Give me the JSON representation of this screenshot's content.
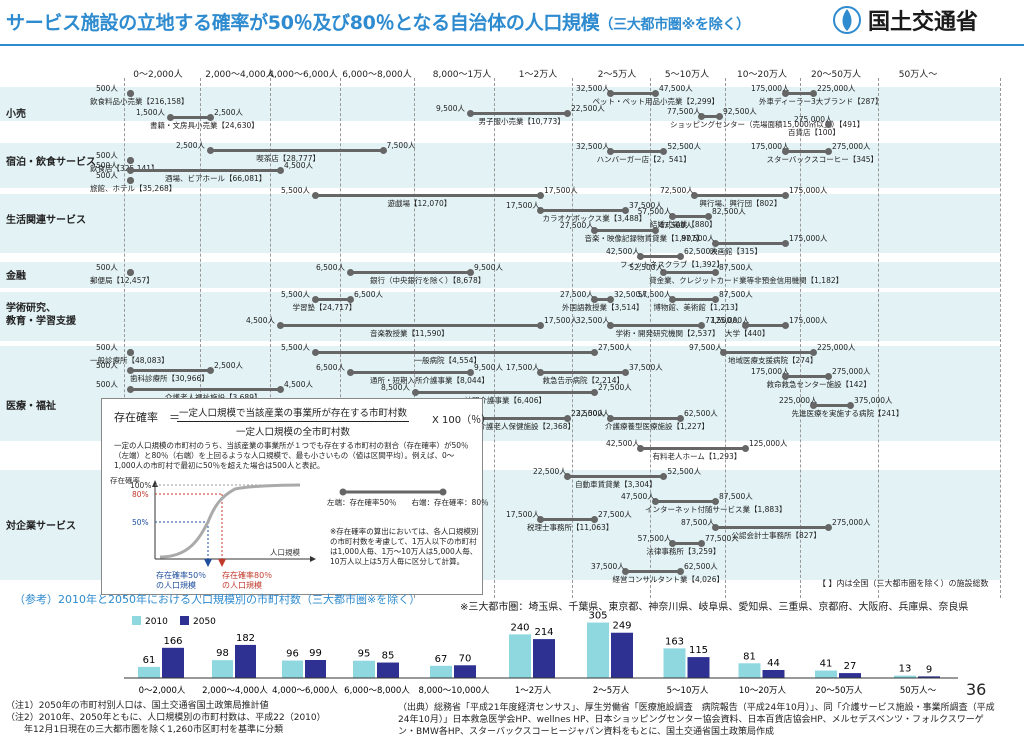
{
  "header": {
    "title": "サービス施設の立地する確率が50％及び80％となる自治体の人口規模",
    "title_sub": "（三大都市圏※を除く）",
    "ministry": "国土交通省",
    "page_number": "36"
  },
  "axis_ticks": [
    "0～2,000人",
    "2,000～4,000人",
    "4,000～6,000人",
    "6,000～8,000人",
    "8,000～1万人",
    "1～2万人",
    "2～5万人",
    "5～10万人",
    "10～20万人",
    "20～50万人",
    "50万人～"
  ],
  "categories": [
    {
      "name": "小売"
    },
    {
      "name": "宿泊・飲食サービス"
    },
    {
      "name": "生活関連サービス"
    },
    {
      "name": "金融"
    },
    {
      "name": "学術研究、\n教育・学習支援"
    },
    {
      "name": "医療・福祉"
    },
    {
      "name": "対企業サービス"
    }
  ],
  "chart_data": [
    {
      "type": "range-dot",
      "title": "サービス施設の立地する確率が50％及び80％となる自治体の人口規模",
      "note": "【 】内は全国（三大都市圏を除く）の施設総数",
      "items": [
        {
          "category": "小売",
          "name": "飲食料品小売業【216,158】",
          "p50": "500人",
          "p80": "500人"
        },
        {
          "category": "小売",
          "name": "書籍・文房具小売業【24,630】",
          "p50": "1,500人",
          "p80": "2,500人"
        },
        {
          "category": "小売",
          "name": "男子服小売業【10,773】",
          "p50": "9,500人",
          "p80": "22,500人"
        },
        {
          "category": "小売",
          "name": "ペット・ペット用品小売業【2,299】",
          "p50": "32,500人",
          "p80": "47,500人"
        },
        {
          "category": "小売",
          "name": "ショッピングセンター（売場面積15,000㎡以上）【491】",
          "p50": "77,500人",
          "p80": "92,500人"
        },
        {
          "category": "小売",
          "name": "外車ディーラー3大ブランド【287】",
          "p50": "175,000人",
          "p80": "225,000人"
        },
        {
          "category": "小売",
          "name": "百貨店【100】",
          "p50": "275,000人",
          "p80": "-"
        },
        {
          "category": "宿泊・飲食サービス",
          "name": "飲食店【325,141】",
          "p50": "500人",
          "p80": "500人"
        },
        {
          "category": "宿泊・飲食サービス",
          "name": "喫茶店【28,777】",
          "p50": "2,500人",
          "p80": "7,500人"
        },
        {
          "category": "宿泊・飲食サービス",
          "name": "酒場、ビアホール【66,081】",
          "p50": "500人",
          "p80": "4,500人"
        },
        {
          "category": "宿泊・飲食サービス",
          "name": "旅館、ホテル【35,268】",
          "p50": "500人",
          "p80": "500人"
        },
        {
          "category": "宿泊・飲食サービス",
          "name": "ハンバーガー店【2，541】",
          "p50": "32,500人",
          "p80": "52,500人"
        },
        {
          "category": "宿泊・飲食サービス",
          "name": "スターバックスコーヒー【345】",
          "p50": "175,000人",
          "p80": "275,000人"
        },
        {
          "category": "生活関連サービス",
          "name": "遊戯場【12,070】",
          "p50": "5,500人",
          "p80": "17,500人"
        },
        {
          "category": "生活関連サービス",
          "name": "カラオケボックス業【3,488】",
          "p50": "17,500人",
          "p80": "37,500人"
        },
        {
          "category": "生活関連サービス",
          "name": "興行場、興行団【802】",
          "p50": "72,500人",
          "p80": "175,000人"
        },
        {
          "category": "生活関連サービス",
          "name": "結婚式場業【880】",
          "p50": "57,500人",
          "p80": "82,500人"
        },
        {
          "category": "生活関連サービス",
          "name": "音楽・映像記録物賃貸業【1,907】",
          "p50": "27,500人",
          "p80": "47,500人"
        },
        {
          "category": "生活関連サービス",
          "name": "映画館【315】",
          "p50": "87,500人",
          "p80": "175,000人"
        },
        {
          "category": "生活関連サービス",
          "name": "フィットネスクラブ【1,392】",
          "p50": "42,500人",
          "p80": "62,500人"
        },
        {
          "category": "金融",
          "name": "郵便局【12,457】",
          "p50": "500人",
          "p80": "500人"
        },
        {
          "category": "金融",
          "name": "銀行（中央銀行を除く）【8,678】",
          "p50": "6,500人",
          "p80": "9,500人"
        },
        {
          "category": "金融",
          "name": "貸金業、クレジットカード業等非預金信用機関【1,182】",
          "p50": "52,500人",
          "p80": "87,500人"
        },
        {
          "category": "学術研究、教育・学習支援",
          "name": "学習塾【24,717】",
          "p50": "5,500人",
          "p80": "6,500人"
        },
        {
          "category": "学術研究、教育・学習支援",
          "name": "外国語教授業【3,514】",
          "p50": "27,500人",
          "p80": "32,500人"
        },
        {
          "category": "学術研究、教育・学習支援",
          "name": "博物館、美術館【1,213】",
          "p50": "57,500人",
          "p80": "87,500人"
        },
        {
          "category": "学術研究、教育・学習支援",
          "name": "音楽教授業【11,590】",
          "p50": "4,500人",
          "p80": "17,500人"
        },
        {
          "category": "学術研究、教育・学習支援",
          "name": "学術・開発研究機関【2,537】",
          "p50": "32,500人",
          "p80": "77,500人"
        },
        {
          "category": "学術研究、教育・学習支援",
          "name": "大学【440】",
          "p50": "125,000人",
          "p80": "175,000人"
        },
        {
          "category": "医療・福祉",
          "name": "一般診療所【48,083】",
          "p50": "500人",
          "p80": "500人"
        },
        {
          "category": "医療・福祉",
          "name": "歯科診療所【30,966】",
          "p50": "500人",
          "p80": "2,500人"
        },
        {
          "category": "医療・福祉",
          "name": "介護老人福祉施設【3,689】",
          "p50": "500人",
          "p80": "4,500人"
        },
        {
          "category": "医療・福祉",
          "name": "一般病院【4,554】",
          "p50": "5,500人",
          "p80": "27,500人"
        },
        {
          "category": "医療・福祉",
          "name": "地域医療支援病院【274】",
          "p50": "97,500人",
          "p80": "225,000人"
        },
        {
          "category": "医療・福祉",
          "name": "通所・短期入所介護事業【8,044】",
          "p50": "6,500人",
          "p80": "9,500人"
        },
        {
          "category": "医療・福祉",
          "name": "救急告示病院【2,214】",
          "p50": "17,500人",
          "p80": "37,500人"
        },
        {
          "category": "医療・福祉",
          "name": "救命救急センター施設【142】",
          "p50": "175,000人",
          "p80": "275,000人"
        },
        {
          "category": "医療・福祉",
          "name": "訪問介護事業【6,406】",
          "p50": "8,500人",
          "p80": "27,500人"
        },
        {
          "category": "医療・福祉",
          "name": "介護老人保健施設【2,368】",
          "p50": "9,500人",
          "p80": "22,500人"
        },
        {
          "category": "医療・福祉",
          "name": "介護療養型医療施設【1,227】",
          "p50": "32,500人",
          "p80": "62,500人"
        },
        {
          "category": "医療・福祉",
          "name": "先進医療を実施する病院【241】",
          "p50": "225,000人",
          "p80": "375,000人"
        },
        {
          "category": "医療・福祉",
          "name": "有料老人ホーム【1,293】",
          "p50": "42,500人",
          "p80": "125,000人"
        },
        {
          "category": "対企業サービス",
          "name": "自動車賃貸業【3,304】",
          "p50": "22,500人",
          "p80": "52,500人"
        },
        {
          "category": "対企業サービス",
          "name": "インターネット付随サービス業【1,883】",
          "p50": "47,500人",
          "p80": "87,500人"
        },
        {
          "category": "対企業サービス",
          "name": "税理士事務所【11,063】",
          "p50": "17,500人",
          "p80": "27,500人"
        },
        {
          "category": "対企業サービス",
          "name": "公認会計士事務所【827】",
          "p50": "87,500人",
          "p80": "275,000人"
        },
        {
          "category": "対企業サービス",
          "name": "法律事務所【3,259】",
          "p50": "57,500人",
          "p80": "77,500人"
        },
        {
          "category": "対企業サービス",
          "name": "経営コンサルタント業【4,026】",
          "p50": "37,500人",
          "p80": "62,500人"
        }
      ]
    },
    {
      "type": "bar",
      "title": "（参考）2010年と2050年における人口規模別の市町村数（三大都市圏※を除く）",
      "categories": [
        "0～2,000人",
        "2,000～4,000人",
        "4,000～6,000人",
        "6,000～8,000人",
        "8,000～10,000人",
        "1～2万人",
        "2～5万人",
        "5～10万人",
        "10～20万人",
        "20～50万人",
        "50万人～"
      ],
      "series": [
        {
          "name": "2010",
          "color": "#8fd8e0",
          "values": [
            61,
            98,
            96,
            95,
            67,
            240,
            305,
            163,
            81,
            41,
            13
          ]
        },
        {
          "name": "2050",
          "color": "#2e3192",
          "values": [
            166,
            182,
            99,
            85,
            70,
            214,
            249,
            115,
            44,
            27,
            9
          ]
        }
      ],
      "ylim": [
        0,
        330
      ]
    }
  ],
  "formula": {
    "lhs": "存在確率",
    "eq": "＝",
    "numerator": "一定人口規模で当該産業の事業所が存在する市町村数",
    "denominator": "一定人口規模の全市町村数",
    "times": "X 100（％）",
    "explain": "一定の人口規模の市町村のうち、当該産業の事業所が１つでも存在する市町村の割合（存在確率）が50％（左端）と80％（右端）を上回るような人口規模で、最も小さいもの（値は区間平均）。例えば、0～1,000人の市町村で最初に50％を超えた場合は500人と表記。",
    "legend": "左端：存在確率50％　　右端：存在確率：80％",
    "axis_y": "存在確率",
    "y100": "100%",
    "y80": "80%",
    "y50": "50%",
    "axis_x": "人口規模",
    "label50": "存在確率50％\nの人口規模",
    "label80": "存在確率80％\nの人口規模",
    "calc_note": "※存在確率の算出においては、各人口規模別の市町村数を考慮して、1万人以下の市町村は1,000人毎、1万～10万人は5,000人毎、10万人以上は5万人毎に区分して計算。"
  },
  "metro_note": "※三大都市圏：埼玉県、千葉県、東京都、神奈川県、岐阜県、愛知県、三重県、京都府、大阪府、兵庫県、奈良県",
  "notes": {
    "n1": "（注1）2050年の市町村別人口は、国土交通省国土政策局推計値",
    "n2": "（注2）2010年、2050年ともに、人口規模別の市町村数は、平成22（2010）",
    "n2b": "　　年12月1日現在の三大都市圏を除く1,260市区町村を基準に分類",
    "source": "（出典）総務省「平成21年度経済センサス」、厚生労働省「医療施設調査　病院報告（平成24年10月）」、同「介護サービス施設・事業所調査（平成24年10月）」日本救急医学会HP、wellnes HP、日本ショッピングセンター協会資料、日本百貨店協会HP、メルセデスベンツ・フォルクスワーゲン・BMW各HP、スターバックスコーヒージャパン資料をもとに、国土交通省国土政策局作成"
  }
}
